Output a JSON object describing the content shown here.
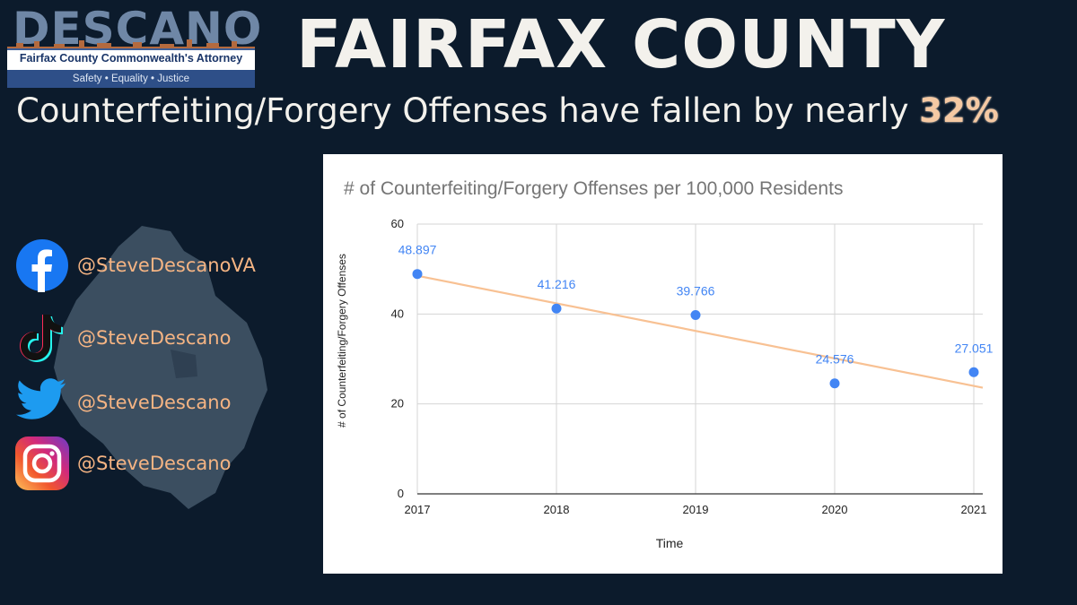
{
  "logo": {
    "wordmark": "DESCANO",
    "subtitle": "Fairfax County Commonwealth's Attorney",
    "tagline": "Safety • Equality • Justice"
  },
  "headline": "FAIRFAX COUNTY",
  "subhead": {
    "text": "Counterfeiting/Forgery Offenses have fallen by nearly",
    "percent": "32%"
  },
  "social": [
    {
      "icon": "facebook-icon",
      "handle": "@SteveDescanoVA"
    },
    {
      "icon": "tiktok-icon",
      "handle": "@SteveDescano"
    },
    {
      "icon": "twitter-icon",
      "handle": "@SteveDescano"
    },
    {
      "icon": "instagram-icon",
      "handle": "@SteveDescano"
    }
  ],
  "colors": {
    "background": "#0c1b2c",
    "accent": "#f5b483",
    "point": "#4285f4",
    "trendline": "#f8c193"
  },
  "chart_data": {
    "type": "scatter",
    "title": "# of Counterfeiting/Forgery Offenses per 100,000 Residents",
    "xlabel": "Time",
    "ylabel": "# of Counterfeiting/Forgery Offenses",
    "x": [
      "2017",
      "2018",
      "2019",
      "2020",
      "2021"
    ],
    "y": [
      48.897,
      41.216,
      39.766,
      24.576,
      27.051
    ],
    "data_labels": [
      "48.897",
      "41.216",
      "39.766",
      "24.576",
      "27.051"
    ],
    "yticks": [
      "0",
      "20",
      "40",
      "60"
    ],
    "ylim": [
      0,
      60
    ],
    "grid": true,
    "trendline": {
      "type": "linear",
      "start": 48.5,
      "end": 24.0
    }
  }
}
